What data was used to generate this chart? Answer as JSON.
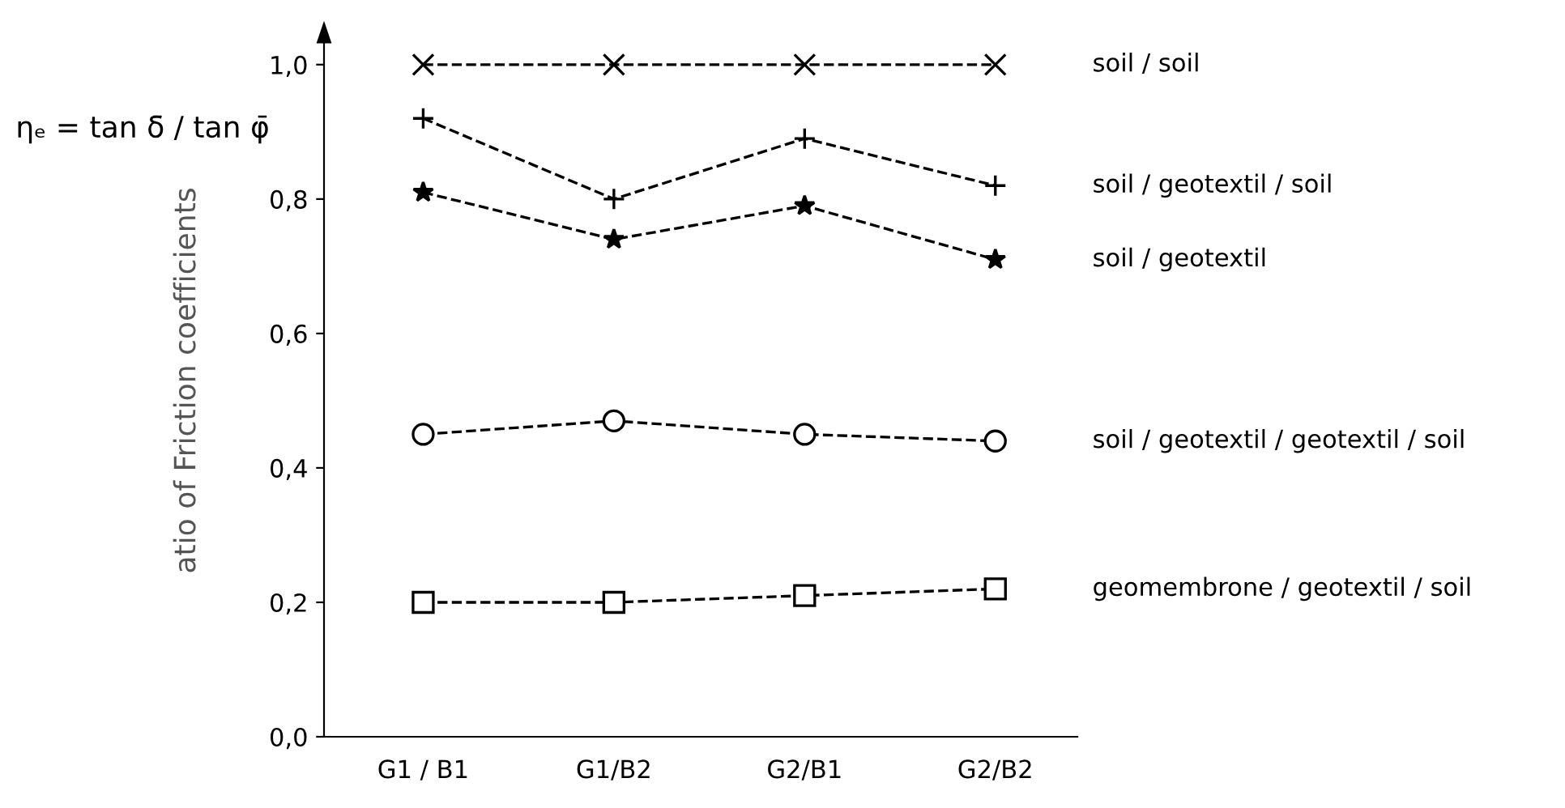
{
  "chart_data": {
    "type": "line",
    "ylabel": "atio of Friction coefficients",
    "annotations": [
      "ηₑ = tan δ̄ / tan φ̄"
    ],
    "categories": [
      "G1 / B1",
      "G1/B2",
      "G2/B1",
      "G2/B2"
    ],
    "series": [
      {
        "name": "soil / soil",
        "color": "#000000",
        "marker": "cross",
        "values": [
          1.0,
          1.0,
          1.0,
          1.0
        ]
      },
      {
        "name": "soil / geotextil / soil",
        "color": "#000000",
        "marker": "plus",
        "values": [
          0.92,
          0.8,
          0.89,
          0.82
        ]
      },
      {
        "name": "soil / geotextil",
        "color": "#000000",
        "marker": "star",
        "values": [
          0.81,
          0.74,
          0.79,
          0.71
        ]
      },
      {
        "name": "soil / geotextil / geotextil / soil",
        "color": "#000000",
        "marker": "circle",
        "values": [
          0.45,
          0.47,
          0.45,
          0.44
        ]
      },
      {
        "name": "geomembrone / geotextil / soil",
        "color": "#000000",
        "marker": "square",
        "values": [
          0.2,
          0.2,
          0.21,
          0.22
        ]
      }
    ],
    "ylim": [
      0,
      1.06
    ],
    "yticks": [
      {
        "value": 0,
        "label": "0,0"
      },
      {
        "value": 0.2,
        "label": "0,2"
      },
      {
        "value": 0.4,
        "label": "0,4"
      },
      {
        "value": 0.6,
        "label": "0,6"
      },
      {
        "value": 0.8,
        "label": "0,8"
      },
      {
        "value": 1.0,
        "label": "1,0"
      }
    ],
    "line_style": "dashed",
    "grid": false,
    "legend": false
  }
}
